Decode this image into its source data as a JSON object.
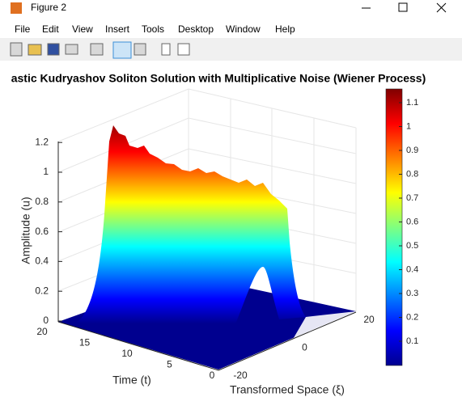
{
  "window": {
    "title": "Figure 2",
    "menu": [
      "File",
      "Edit",
      "View",
      "Insert",
      "Tools",
      "Desktop",
      "Window",
      "Help"
    ]
  },
  "plot": {
    "title": "astic Kudryashov Soliton Solution with Multiplicative Noise (Wiener Process)",
    "z_label": "Amplitude (u)",
    "x_label": "Time (t)",
    "y_label": "Transformed Space (ξ)",
    "z_ticks": [
      "0",
      "0.2",
      "0.4",
      "0.6",
      "0.8",
      "1",
      "1.2"
    ],
    "x_ticks": [
      "20",
      "15",
      "10",
      "5",
      "0"
    ],
    "y_ticks": [
      "-20",
      "0",
      "20"
    ],
    "colorbar_ticks": [
      "0.1",
      "0.2",
      "0.3",
      "0.4",
      "0.5",
      "0.6",
      "0.7",
      "0.8",
      "0.9",
      "1",
      "1.1"
    ]
  }
}
